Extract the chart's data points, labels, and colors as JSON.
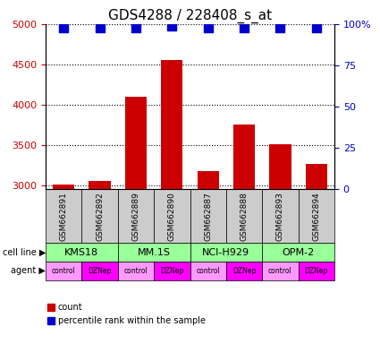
{
  "title": "GDS4288 / 228408_s_at",
  "samples": [
    "GSM662891",
    "GSM662892",
    "GSM662889",
    "GSM662890",
    "GSM662887",
    "GSM662888",
    "GSM662893",
    "GSM662894"
  ],
  "counts": [
    3010,
    3050,
    4100,
    4550,
    3170,
    3750,
    3510,
    3260
  ],
  "percentile_ranks": [
    98,
    98,
    98,
    99,
    98,
    98,
    98,
    98
  ],
  "cell_lines": [
    "KMS18",
    "MM.1S",
    "NCI-H929",
    "OPM-2"
  ],
  "cell_line_spans": [
    [
      0,
      2
    ],
    [
      2,
      4
    ],
    [
      4,
      6
    ],
    [
      6,
      8
    ]
  ],
  "agents": [
    "control",
    "DZNep",
    "control",
    "DZNep",
    "control",
    "DZNep",
    "control",
    "DZNep"
  ],
  "ylim_left": [
    2950,
    5000
  ],
  "yticks_left": [
    3000,
    3500,
    4000,
    4500,
    5000
  ],
  "yticks_right": [
    0,
    25,
    50,
    75,
    100
  ],
  "ylim_right": [
    0,
    100
  ],
  "bar_color": "#cc0000",
  "dot_color": "#0000cc",
  "cell_line_color": "#99ff99",
  "control_color": "#ff99ff",
  "dznep_color": "#ff00ff",
  "gray_color": "#cccccc",
  "bar_width": 0.6,
  "dot_size": 50,
  "left_label_color": "#cc0000",
  "right_label_color": "#0000cc"
}
